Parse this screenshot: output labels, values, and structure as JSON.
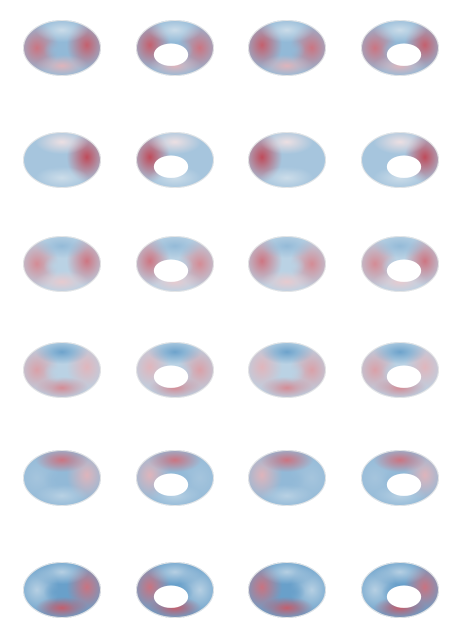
{
  "figure": {
    "grid": {
      "rows": 6,
      "columns": 4
    },
    "colormap": {
      "negative": "#2c7bb6",
      "neutral": "#f7f7f7",
      "positive": "#b2182b"
    },
    "view_pattern": [
      "left-lateral",
      "left-medial",
      "right-lateral",
      "right-medial"
    ],
    "maps": [
      {
        "row": 1,
        "front": 0.6,
        "back": 0.7,
        "top": -0.2,
        "bottom": 0.3,
        "center": -0.5
      },
      {
        "row": 2,
        "front": -0.4,
        "back": 0.8,
        "top": 0.1,
        "bottom": -0.2,
        "center": -0.4
      },
      {
        "row": 3,
        "front": 0.5,
        "back": 0.6,
        "top": -0.5,
        "bottom": 0.2,
        "center": -0.3
      },
      {
        "row": 4,
        "front": 0.4,
        "back": 0.3,
        "top": -0.7,
        "bottom": 0.5,
        "center": -0.3
      },
      {
        "row": 5,
        "front": -0.4,
        "back": 0.3,
        "top": 0.6,
        "bottom": -0.3,
        "center": -0.5
      },
      {
        "row": 6,
        "front": -0.3,
        "back": 0.6,
        "top": -0.3,
        "bottom": 0.7,
        "center": -0.7
      }
    ]
  }
}
